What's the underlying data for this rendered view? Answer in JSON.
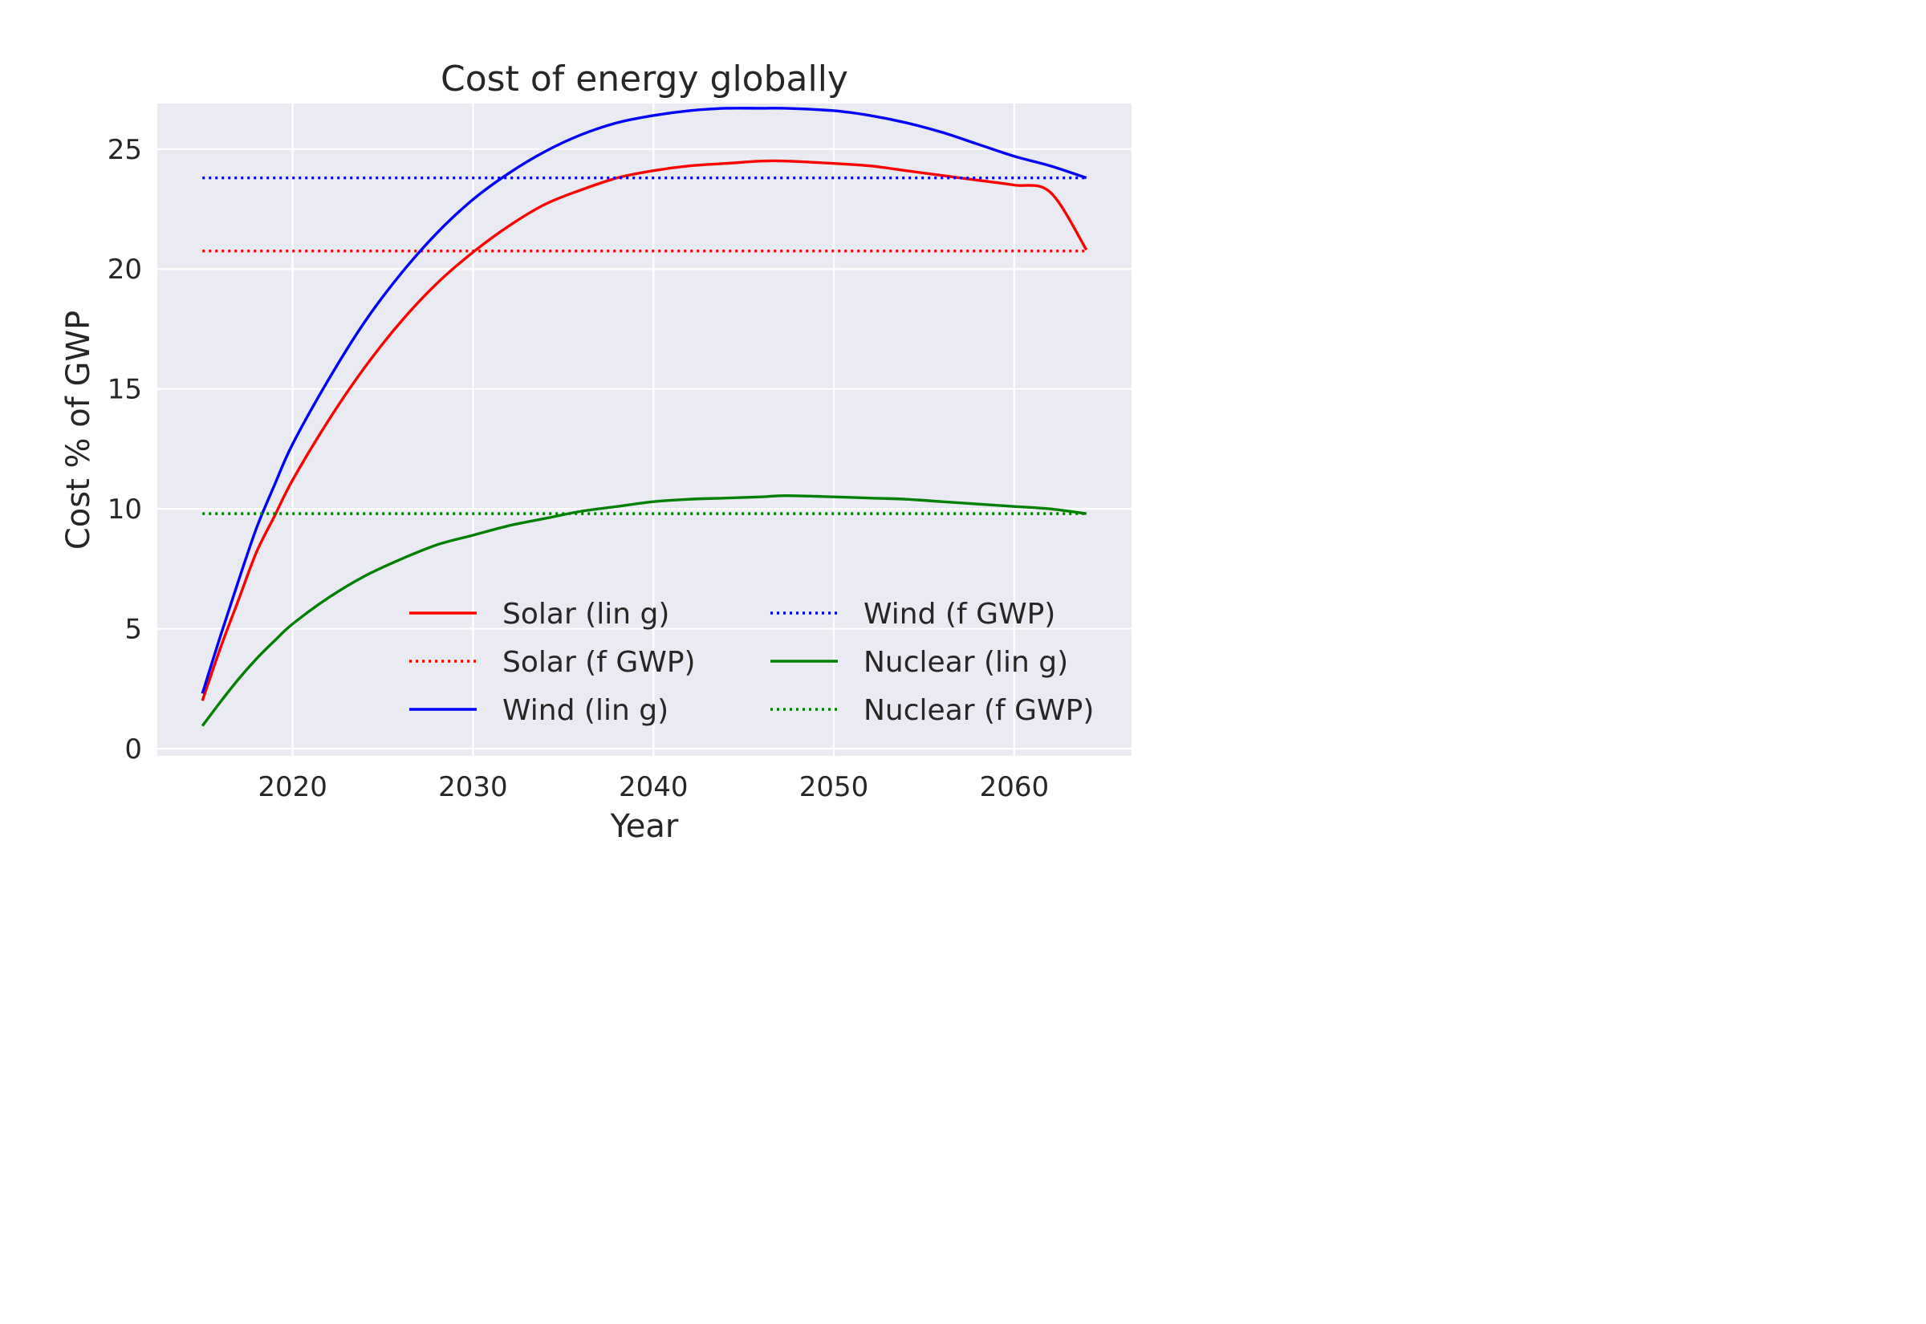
{
  "chart_data": {
    "type": "line",
    "title": "Cost of energy globally",
    "xlabel": "Year",
    "ylabel": "Cost % of GWP",
    "xlim": [
      2012.5,
      2066.5
    ],
    "ylim": [
      -0.3,
      26.9
    ],
    "xticks": [
      2020,
      2030,
      2040,
      2050,
      2060
    ],
    "yticks": [
      0,
      5,
      10,
      15,
      20,
      25
    ],
    "grid": true,
    "background": "#EAEAF2",
    "legend": {
      "placement": "lower-right",
      "columns": 2
    },
    "series": [
      {
        "name": "Solar (lin g)",
        "color": "#FF0000",
        "style": "solid",
        "x": [
          2015,
          2016,
          2017,
          2018,
          2019,
          2020,
          2022,
          2024,
          2026,
          2028,
          2030,
          2032,
          2034,
          2036,
          2038,
          2040,
          2042,
          2044,
          2046,
          2047.3,
          2050,
          2052,
          2054,
          2056,
          2058,
          2060,
          2062,
          2064
        ],
        "y": [
          2.0,
          4.2,
          6.2,
          8.2,
          9.7,
          11.2,
          13.7,
          15.9,
          17.8,
          19.4,
          20.7,
          21.8,
          22.7,
          23.3,
          23.8,
          24.1,
          24.3,
          24.4,
          24.5,
          24.5,
          24.4,
          24.3,
          24.1,
          23.9,
          23.7,
          23.5,
          23.2,
          20.8
        ]
      },
      {
        "name": "Solar (f GWP)",
        "color": "#FF0000",
        "style": "dotted",
        "x": [
          2015,
          2064
        ],
        "y": [
          20.75,
          20.75
        ]
      },
      {
        "name": "Wind (lin g)",
        "color": "#0000FF",
        "style": "solid",
        "x": [
          2015,
          2016,
          2017,
          2018,
          2019,
          2020,
          2022,
          2024,
          2026,
          2028,
          2030,
          2032,
          2034,
          2036,
          2038,
          2040,
          2042,
          2044,
          2046,
          2047.3,
          2050,
          2052,
          2054,
          2056,
          2058,
          2060,
          2062,
          2064
        ],
        "y": [
          2.3,
          4.7,
          7.0,
          9.2,
          11.0,
          12.7,
          15.4,
          17.8,
          19.8,
          21.5,
          22.9,
          24.0,
          24.9,
          25.6,
          26.1,
          26.4,
          26.6,
          26.7,
          26.7,
          26.7,
          26.6,
          26.4,
          26.1,
          25.7,
          25.2,
          24.7,
          24.3,
          23.8
        ]
      },
      {
        "name": "Wind (f GWP)",
        "color": "#0000FF",
        "style": "dotted",
        "x": [
          2015,
          2064
        ],
        "y": [
          23.8,
          23.8
        ]
      },
      {
        "name": "Nuclear (lin g)",
        "color": "#008000",
        "style": "solid",
        "x": [
          2015,
          2016,
          2017,
          2018,
          2019,
          2020,
          2022,
          2024,
          2026,
          2028,
          2030,
          2032,
          2034,
          2036,
          2038,
          2040,
          2042,
          2044,
          2046,
          2047.3,
          2050,
          2052,
          2054,
          2056,
          2058,
          2060,
          2062,
          2064
        ],
        "y": [
          0.95,
          1.95,
          2.9,
          3.75,
          4.5,
          5.2,
          6.3,
          7.2,
          7.9,
          8.5,
          8.9,
          9.3,
          9.6,
          9.9,
          10.1,
          10.3,
          10.4,
          10.45,
          10.5,
          10.55,
          10.5,
          10.45,
          10.4,
          10.3,
          10.2,
          10.1,
          10.0,
          9.8
        ]
      },
      {
        "name": "Nuclear (f GWP)",
        "color": "#008000",
        "style": "dotted",
        "x": [
          2015,
          2064
        ],
        "y": [
          9.8,
          9.8
        ]
      }
    ]
  }
}
